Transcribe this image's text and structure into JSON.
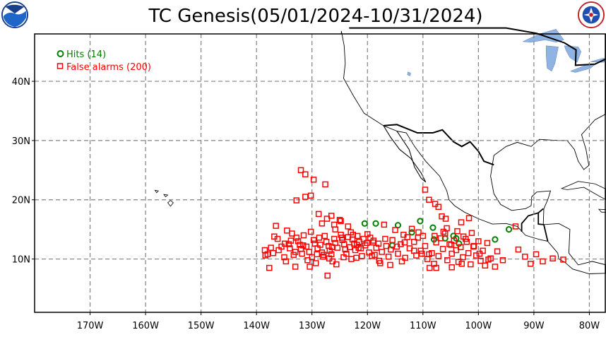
{
  "title": "TC Genesis(05/01/2024-10/31/2024)",
  "logos": {
    "left": "noaa-logo",
    "right": "nws-logo"
  },
  "legend": {
    "hits": {
      "label": "Hits (14)",
      "color": "#008000"
    },
    "false_alarms": {
      "label": "False alarms (200)",
      "color": "#ff0000"
    }
  },
  "colors": {
    "land_outline": "#000000",
    "lakes": "#8fb4e3",
    "grid": "#808080"
  },
  "chart_data": {
    "type": "scatter",
    "xlim": [
      -180,
      -77
    ],
    "ylim": [
      1,
      48
    ],
    "x_ticks": [
      {
        "value": -170,
        "label": "170W"
      },
      {
        "value": -160,
        "label": "160W"
      },
      {
        "value": -150,
        "label": "150W"
      },
      {
        "value": -140,
        "label": "140W"
      },
      {
        "value": -130,
        "label": "130W"
      },
      {
        "value": -120,
        "label": "120W"
      },
      {
        "value": -110,
        "label": "110W"
      },
      {
        "value": -100,
        "label": "100W"
      },
      {
        "value": -90,
        "label": "90W"
      },
      {
        "value": -80,
        "label": "80W"
      }
    ],
    "y_ticks": [
      {
        "value": 10,
        "label": "10N"
      },
      {
        "value": 20,
        "label": "20N"
      },
      {
        "value": 30,
        "label": "30N"
      },
      {
        "value": 40,
        "label": "40N"
      }
    ],
    "series": [
      {
        "name": "Hits (14)",
        "marker": "circle",
        "color": "#008000",
        "points": [
          [
            -120.5,
            16
          ],
          [
            -118.5,
            16
          ],
          [
            -114.5,
            15.7
          ],
          [
            -110.5,
            16.4
          ],
          [
            -108.2,
            15.3
          ],
          [
            -108,
            13.3
          ],
          [
            -104.5,
            13.9
          ],
          [
            -104,
            13.5
          ],
          [
            -103.5,
            12.6
          ],
          [
            -97,
            13.3
          ],
          [
            -94.5,
            15
          ],
          [
            -115.5,
            12.3
          ],
          [
            -112,
            14.5
          ],
          [
            -106,
            13.5
          ]
        ]
      },
      {
        "name": "False alarms (200)",
        "marker": "square",
        "color": "#ff0000",
        "points": [
          [
            -138.5,
            11.5
          ],
          [
            -138,
            10.8
          ],
          [
            -137.7,
            8.5
          ],
          [
            -137,
            11.0
          ],
          [
            -136.5,
            15.6
          ],
          [
            -136.2,
            13.4
          ],
          [
            -136,
            11.5
          ],
          [
            -135.5,
            12.1
          ],
          [
            -135,
            10.3
          ],
          [
            -134.7,
            9.6
          ],
          [
            -134.5,
            14.8
          ],
          [
            -134.2,
            12.5
          ],
          [
            -134,
            11.8
          ],
          [
            -133.6,
            14.3
          ],
          [
            -133.3,
            10.7
          ],
          [
            -133,
            8.7
          ],
          [
            -132.8,
            13.6
          ],
          [
            -132.5,
            13.0
          ],
          [
            -132.2,
            12.4
          ],
          [
            -132,
            11.7
          ],
          [
            -131.8,
            10.9
          ],
          [
            -131.5,
            14.0
          ],
          [
            -131,
            12.1
          ],
          [
            -130.8,
            9.8
          ],
          [
            -130.5,
            11.2
          ],
          [
            -130.2,
            14.6
          ],
          [
            -130,
            10.3
          ],
          [
            -129.7,
            13.2
          ],
          [
            -129.5,
            12.6
          ],
          [
            -129,
            11.8
          ],
          [
            -128.7,
            13.6
          ],
          [
            -128.5,
            12.4
          ],
          [
            -128.2,
            11.1
          ],
          [
            -128,
            10.4
          ],
          [
            -127.7,
            13.9
          ],
          [
            -127.4,
            12.9
          ],
          [
            -127,
            12.2
          ],
          [
            -126.8,
            11.4
          ],
          [
            -126.5,
            10.8
          ],
          [
            -126.3,
            9.6
          ],
          [
            -126,
            13.4
          ],
          [
            -125.8,
            12.7
          ],
          [
            -125.4,
            11.9
          ],
          [
            -125,
            16.6
          ],
          [
            -124.8,
            14.1
          ],
          [
            -124.5,
            13.2
          ],
          [
            -124.2,
            12.5
          ],
          [
            -124,
            11.6
          ],
          [
            -123.8,
            10.9
          ],
          [
            -123.5,
            13.7
          ],
          [
            -123.2,
            12.0
          ],
          [
            -123,
            14.5
          ],
          [
            -122.7,
            13.3
          ],
          [
            -122.4,
            12.6
          ],
          [
            -122.2,
            11.5
          ],
          [
            -122,
            10.2
          ],
          [
            -121.8,
            13.9
          ],
          [
            -121.5,
            12.9
          ],
          [
            -121.2,
            11.8
          ],
          [
            -121,
            10.5
          ],
          [
            -120.7,
            13.4
          ],
          [
            -120.4,
            12.3
          ],
          [
            -120,
            14.2
          ],
          [
            -119.7,
            11.1
          ],
          [
            -119.5,
            13.6
          ],
          [
            -119,
            12.8
          ],
          [
            -118.7,
            10.7
          ],
          [
            -118.4,
            11.9
          ],
          [
            -118,
            12.6
          ],
          [
            -117.7,
            9.3
          ],
          [
            -117.4,
            11.2
          ],
          [
            -117,
            15.8
          ],
          [
            -116.6,
            12.2
          ],
          [
            -116.2,
            10.4
          ],
          [
            -115.8,
            11.6
          ],
          [
            -115.5,
            13.2
          ],
          [
            -115,
            14.9
          ],
          [
            -114.5,
            10.9
          ],
          [
            -114,
            12.5
          ],
          [
            -113.5,
            14.1
          ],
          [
            -113.2,
            10.2
          ],
          [
            -112.8,
            13.7
          ],
          [
            -112.4,
            11.8
          ],
          [
            -112,
            15.1
          ],
          [
            -111.6,
            12.9
          ],
          [
            -111.2,
            10.6
          ],
          [
            -110.8,
            14.5
          ],
          [
            -110.4,
            11.4
          ],
          [
            -110,
            13.9
          ],
          [
            -109.6,
            12.2
          ],
          [
            -109.2,
            10.0
          ],
          [
            -108.8,
            8.5
          ],
          [
            -108.4,
            11.0
          ],
          [
            -108,
            9.2
          ],
          [
            -107.6,
            12.8
          ],
          [
            -107.2,
            10.5
          ],
          [
            -106.8,
            13.5
          ],
          [
            -106.4,
            11.7
          ],
          [
            -106,
            14.3
          ],
          [
            -105.6,
            9.8
          ],
          [
            -105.2,
            12.5
          ],
          [
            -104.8,
            10.9
          ],
          [
            -104.4,
            13.1
          ],
          [
            -104,
            11.5
          ],
          [
            -103.6,
            9.5
          ],
          [
            -103.2,
            12.0
          ],
          [
            -102.8,
            10.3
          ],
          [
            -102.3,
            13.4
          ],
          [
            -101.8,
            11.0
          ],
          [
            -101.4,
            9.1
          ],
          [
            -100.8,
            12.2
          ],
          [
            -100.4,
            10.6
          ],
          [
            -100,
            13.0
          ],
          [
            -99.6,
            9.7
          ],
          [
            -99.2,
            11.4
          ],
          [
            -98.8,
            8.9
          ],
          [
            -98.4,
            12.7
          ],
          [
            -97.8,
            10.1
          ],
          [
            -96.6,
            11.3
          ],
          [
            -95.6,
            9.8
          ],
          [
            -92.8,
            11.6
          ],
          [
            -91.6,
            10.4
          ],
          [
            -90.6,
            9.2
          ],
          [
            -89.6,
            10.8
          ],
          [
            -88.4,
            9.6
          ],
          [
            -86.6,
            10.1
          ],
          [
            -84.7,
            9.9
          ],
          [
            -93.3,
            15.5
          ],
          [
            -132,
            25.0
          ],
          [
            -131.2,
            24.3
          ],
          [
            -129.7,
            23.4
          ],
          [
            -127.6,
            22.6
          ],
          [
            -132.8,
            19.9
          ],
          [
            -131.2,
            20.5
          ],
          [
            -130.2,
            20.7
          ],
          [
            -128.8,
            17.6
          ],
          [
            -127.3,
            16.8
          ],
          [
            -126.5,
            17.3
          ],
          [
            -126,
            15.8
          ],
          [
            -124.8,
            16.4
          ],
          [
            -123.5,
            15.5
          ],
          [
            -125.8,
            15.0
          ],
          [
            -109.6,
            21.7
          ],
          [
            -108.9,
            20.0
          ],
          [
            -107.8,
            19.3
          ],
          [
            -107.2,
            18.8
          ],
          [
            -106.6,
            17.2
          ],
          [
            -105.9,
            16.8
          ],
          [
            -106.3,
            14.6
          ],
          [
            -127.2,
            7.2
          ],
          [
            -103.1,
            16.2
          ],
          [
            -102.7,
            13.8
          ],
          [
            -101.7,
            16.9
          ],
          [
            -101.2,
            14.4
          ],
          [
            -128.2,
            16.0
          ],
          [
            -133.8,
            13.1
          ],
          [
            -136.8,
            13.8
          ],
          [
            -137.4,
            11.9
          ],
          [
            -138.4,
            10.6
          ],
          [
            -129.3,
            9.3
          ],
          [
            -130.4,
            8.7
          ],
          [
            -125.6,
            9.1
          ],
          [
            -122.9,
            10.0
          ],
          [
            -115.9,
            9.0
          ],
          [
            -119.2,
            10.5
          ],
          [
            -117.9,
            9.7
          ],
          [
            -113.8,
            9.6
          ],
          [
            -110.2,
            10.9
          ],
          [
            -104.8,
            8.6
          ],
          [
            -107.6,
            8.5
          ],
          [
            -103.0,
            9.2
          ],
          [
            -97.0,
            8.7
          ],
          [
            -98.2,
            9.9
          ],
          [
            -124.3,
            10.3
          ],
          [
            -127.9,
            10.7
          ],
          [
            -126.4,
            12.0
          ],
          [
            -121.9,
            12.4
          ],
          [
            -118.9,
            13.1
          ],
          [
            -114.7,
            12.1
          ],
          [
            -111.6,
            11.4
          ],
          [
            -108.9,
            10.8
          ],
          [
            -104.9,
            12.4
          ],
          [
            -102.1,
            12.9
          ],
          [
            -99.8,
            10.9
          ],
          [
            -134.9,
            12.6
          ],
          [
            -133.0,
            11.2
          ],
          [
            -131.6,
            12.3
          ],
          [
            -129.1,
            10.8
          ],
          [
            -126.9,
            10.1
          ],
          [
            -124.6,
            13.6
          ],
          [
            -122.6,
            14.1
          ],
          [
            -120.1,
            12.7
          ],
          [
            -116.8,
            13.4
          ],
          [
            -113.3,
            12.8
          ],
          [
            -110.9,
            13.6
          ],
          [
            -107.9,
            13.9
          ],
          [
            -105.7,
            15.2
          ],
          [
            -103.8,
            14.7
          ],
          [
            -100.9,
            12.1
          ],
          [
            -121.6,
            11.9
          ]
        ]
      }
    ]
  }
}
